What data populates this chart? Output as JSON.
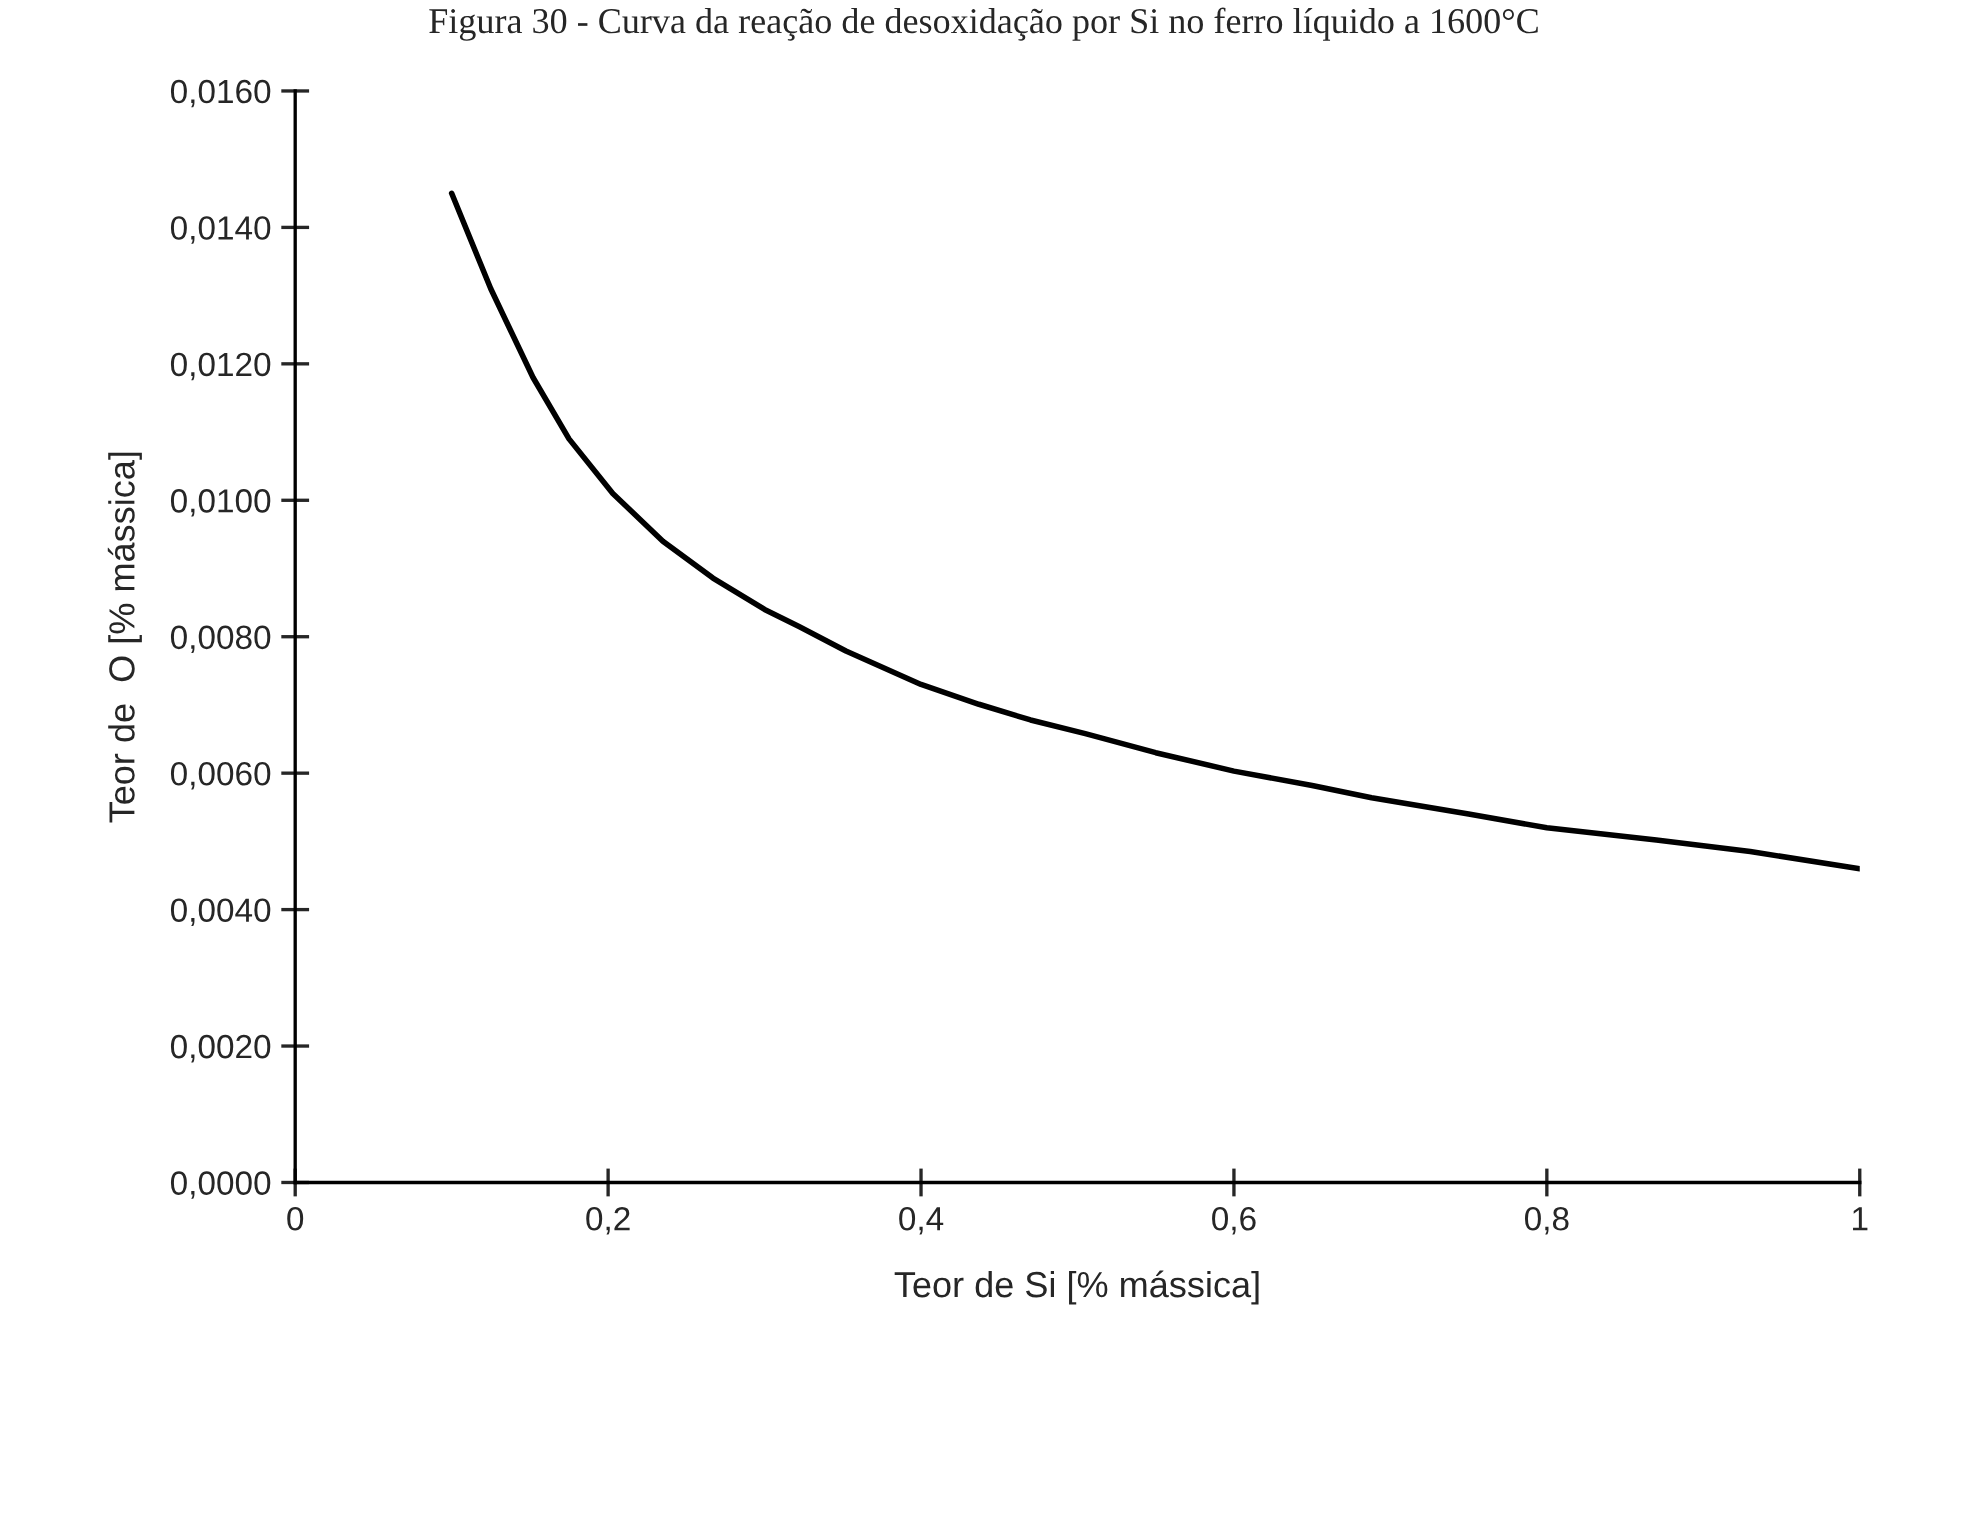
{
  "chart_data": {
    "type": "line",
    "title": "Figura 30 - Curva da reação de desoxidação por Si no ferro líquido a 1600°C",
    "xlabel": "Teor de Si [% mássica]",
    "ylabel": "Teor de  O [% mássica]",
    "series": [
      {
        "color": "#000000",
        "x": [
          0.1,
          0.125,
          0.152,
          0.175,
          0.203,
          0.235,
          0.267,
          0.3,
          0.322,
          0.352,
          0.4,
          0.437,
          0.47,
          0.505,
          0.55,
          0.6,
          0.65,
          0.688,
          0.75,
          0.8,
          0.87,
          0.93,
          1.0
        ],
        "values": [
          0.0145,
          0.0131,
          0.0118,
          0.0109,
          0.0101,
          0.0094,
          0.00886,
          0.0084,
          0.00815,
          0.00779,
          0.0073,
          0.00701,
          0.00678,
          0.00658,
          0.0063,
          0.00603,
          0.00582,
          0.00564,
          0.0054,
          0.0052,
          0.00502,
          0.00485,
          0.0046
        ]
      }
    ],
    "xlim": [
      0,
      1
    ],
    "xticks": [
      {
        "value": 0,
        "label": "0"
      },
      {
        "value": 0.2,
        "label": "0,2"
      },
      {
        "value": 0.4,
        "label": "0,4"
      },
      {
        "value": 0.6,
        "label": "0,6"
      },
      {
        "value": 0.8,
        "label": "0,8"
      },
      {
        "value": 1,
        "label": "1"
      }
    ],
    "ylim": [
      0,
      0.016
    ],
    "yticks": [
      {
        "value": 0,
        "label": "0,0000"
      },
      {
        "value": 0.002,
        "label": "0,0020"
      },
      {
        "value": 0.004,
        "label": "0,0040"
      },
      {
        "value": 0.006,
        "label": "0,0060"
      },
      {
        "value": 0.008,
        "label": "0,0080"
      },
      {
        "value": 0.01,
        "label": "0,0100"
      },
      {
        "value": 0.012,
        "label": "0,0120"
      },
      {
        "value": 0.014,
        "label": "0,0140"
      },
      {
        "value": 0.016,
        "label": "0,0160"
      }
    ],
    "grid": false,
    "legend": false,
    "marker": "none",
    "line_style": "solid"
  }
}
